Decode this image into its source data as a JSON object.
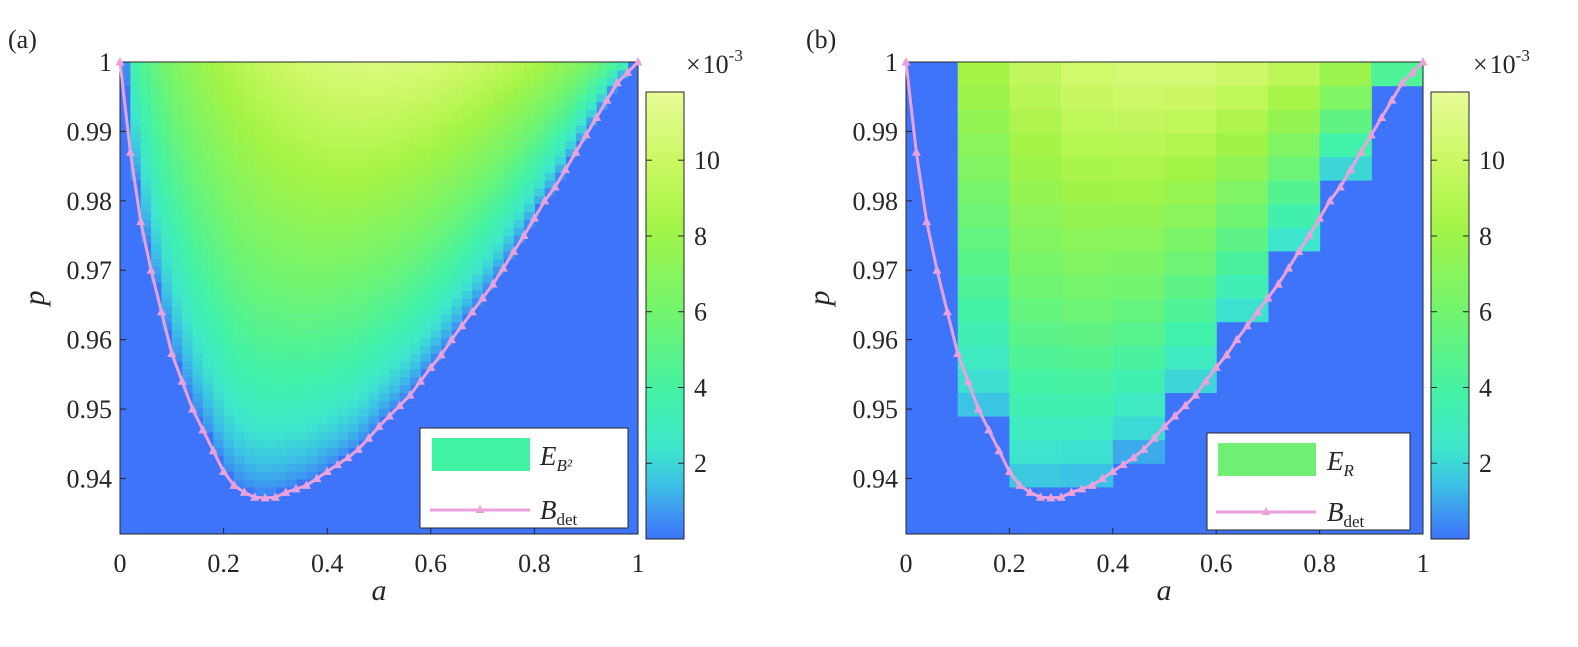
{
  "figure": {
    "colormap": "parula-like (blue to yellow)"
  },
  "chart_data": [
    {
      "type": "heatmap",
      "panel_label": "(a)",
      "xlabel": "a",
      "ylabel": "p",
      "xlim": [
        0,
        1
      ],
      "ylim": [
        0.932,
        1.0
      ],
      "x_ticks": [
        "0",
        "0.2",
        "0.4",
        "0.6",
        "0.8",
        "1"
      ],
      "x_tick_values": [
        0,
        0.2,
        0.4,
        0.6,
        0.8,
        1
      ],
      "y_ticks": [
        "0.94",
        "0.95",
        "0.96",
        "0.97",
        "0.98",
        "0.99",
        "1"
      ],
      "y_tick_values": [
        0.94,
        0.95,
        0.96,
        0.97,
        0.98,
        0.99,
        1.0
      ],
      "grid_resolution": {
        "nx": 50,
        "ny": 60
      },
      "heat_quantity": "E_B²",
      "zlim": [
        0,
        0.0118
      ],
      "colorbar": {
        "exponent_label": "× 10-3",
        "ticks": [
          "2",
          "4",
          "6",
          "8",
          "10"
        ],
        "tick_values": [
          2,
          4,
          6,
          8,
          10
        ]
      },
      "legend": {
        "position": "bottom-right",
        "entries": [
          {
            "name": "E_B²",
            "main": "E",
            "sub": "B²",
            "style": "patch",
            "color": "#41f3a3"
          },
          {
            "name": "B_det",
            "main": "B",
            "sub": "det",
            "style": "line-triangle",
            "color": "#eba2dc"
          }
        ]
      },
      "series": [
        {
          "name": "B_det",
          "color": "#eba2dc",
          "marker": "triangle",
          "points": [
            [
              0.0,
              1.0
            ],
            [
              0.02,
              0.987
            ],
            [
              0.04,
              0.977
            ],
            [
              0.06,
              0.97
            ],
            [
              0.08,
              0.964
            ],
            [
              0.1,
              0.958
            ],
            [
              0.12,
              0.954
            ],
            [
              0.14,
              0.95
            ],
            [
              0.16,
              0.947
            ],
            [
              0.18,
              0.944
            ],
            [
              0.2,
              0.941
            ],
            [
              0.22,
              0.939
            ],
            [
              0.24,
              0.938
            ],
            [
              0.26,
              0.9373
            ],
            [
              0.28,
              0.9372
            ],
            [
              0.3,
              0.9373
            ],
            [
              0.32,
              0.938
            ],
            [
              0.34,
              0.9385
            ],
            [
              0.36,
              0.939
            ],
            [
              0.38,
              0.94
            ],
            [
              0.4,
              0.941
            ],
            [
              0.42,
              0.942
            ],
            [
              0.44,
              0.943
            ],
            [
              0.46,
              0.9442
            ],
            [
              0.48,
              0.9458
            ],
            [
              0.5,
              0.9475
            ],
            [
              0.52,
              0.949
            ],
            [
              0.54,
              0.9505
            ],
            [
              0.56,
              0.952
            ],
            [
              0.58,
              0.954
            ],
            [
              0.6,
              0.956
            ],
            [
              0.62,
              0.9578
            ],
            [
              0.64,
              0.96
            ],
            [
              0.66,
              0.962
            ],
            [
              0.68,
              0.964
            ],
            [
              0.7,
              0.966
            ],
            [
              0.72,
              0.968
            ],
            [
              0.74,
              0.9703
            ],
            [
              0.76,
              0.9727
            ],
            [
              0.78,
              0.975
            ],
            [
              0.8,
              0.9775
            ],
            [
              0.82,
              0.98
            ],
            [
              0.84,
              0.982
            ],
            [
              0.86,
              0.9845
            ],
            [
              0.88,
              0.987
            ],
            [
              0.9,
              0.9895
            ],
            [
              0.92,
              0.992
            ],
            [
              0.94,
              0.9945
            ],
            [
              0.96,
              0.997
            ],
            [
              0.98,
              0.9985
            ],
            [
              1.0,
              1.0
            ]
          ]
        }
      ]
    },
    {
      "type": "heatmap",
      "panel_label": "(b)",
      "xlabel": "a",
      "ylabel": "p",
      "xlim": [
        0,
        1
      ],
      "ylim": [
        0.932,
        1.0
      ],
      "x_ticks": [
        "0",
        "0.2",
        "0.4",
        "0.6",
        "0.8",
        "1"
      ],
      "x_tick_values": [
        0,
        0.2,
        0.4,
        0.6,
        0.8,
        1
      ],
      "y_ticks": [
        "0.94",
        "0.95",
        "0.96",
        "0.97",
        "0.98",
        "0.99",
        "1"
      ],
      "y_tick_values": [
        0.94,
        0.95,
        0.96,
        0.97,
        0.98,
        0.99,
        1.0
      ],
      "grid_resolution": {
        "nx": 10,
        "ny": 20
      },
      "heat_quantity": "E_R",
      "zlim": [
        0,
        0.0118
      ],
      "colorbar": {
        "exponent_label": "× 10-3",
        "ticks": [
          "2",
          "4",
          "6",
          "8",
          "10"
        ],
        "tick_values": [
          2,
          4,
          6,
          8,
          10
        ]
      },
      "legend": {
        "position": "bottom-right",
        "entries": [
          {
            "name": "E_R",
            "main": "E",
            "sub": "R",
            "style": "patch",
            "color": "#6ff075"
          },
          {
            "name": "B_det",
            "main": "B",
            "sub": "det",
            "style": "line-triangle",
            "color": "#eba2dc"
          }
        ]
      },
      "series": [
        {
          "name": "B_det",
          "color": "#eba2dc",
          "marker": "triangle",
          "points": [
            [
              0.0,
              1.0
            ],
            [
              0.02,
              0.987
            ],
            [
              0.04,
              0.977
            ],
            [
              0.06,
              0.97
            ],
            [
              0.08,
              0.964
            ],
            [
              0.1,
              0.958
            ],
            [
              0.12,
              0.954
            ],
            [
              0.14,
              0.95
            ],
            [
              0.16,
              0.947
            ],
            [
              0.18,
              0.944
            ],
            [
              0.2,
              0.941
            ],
            [
              0.22,
              0.939
            ],
            [
              0.24,
              0.938
            ],
            [
              0.26,
              0.9373
            ],
            [
              0.28,
              0.9372
            ],
            [
              0.3,
              0.9373
            ],
            [
              0.32,
              0.938
            ],
            [
              0.34,
              0.9385
            ],
            [
              0.36,
              0.939
            ],
            [
              0.38,
              0.94
            ],
            [
              0.4,
              0.941
            ],
            [
              0.42,
              0.942
            ],
            [
              0.44,
              0.943
            ],
            [
              0.46,
              0.9442
            ],
            [
              0.48,
              0.9458
            ],
            [
              0.5,
              0.9475
            ],
            [
              0.52,
              0.949
            ],
            [
              0.54,
              0.9505
            ],
            [
              0.56,
              0.952
            ],
            [
              0.58,
              0.954
            ],
            [
              0.6,
              0.956
            ],
            [
              0.62,
              0.9578
            ],
            [
              0.64,
              0.96
            ],
            [
              0.66,
              0.962
            ],
            [
              0.68,
              0.964
            ],
            [
              0.7,
              0.966
            ],
            [
              0.72,
              0.968
            ],
            [
              0.74,
              0.9703
            ],
            [
              0.76,
              0.9727
            ],
            [
              0.78,
              0.975
            ],
            [
              0.8,
              0.9775
            ],
            [
              0.82,
              0.98
            ],
            [
              0.84,
              0.982
            ],
            [
              0.86,
              0.9845
            ],
            [
              0.88,
              0.987
            ],
            [
              0.9,
              0.9895
            ],
            [
              0.92,
              0.992
            ],
            [
              0.94,
              0.9945
            ],
            [
              0.96,
              0.997
            ],
            [
              0.98,
              0.9985
            ],
            [
              1.0,
              1.0
            ]
          ]
        }
      ]
    }
  ]
}
